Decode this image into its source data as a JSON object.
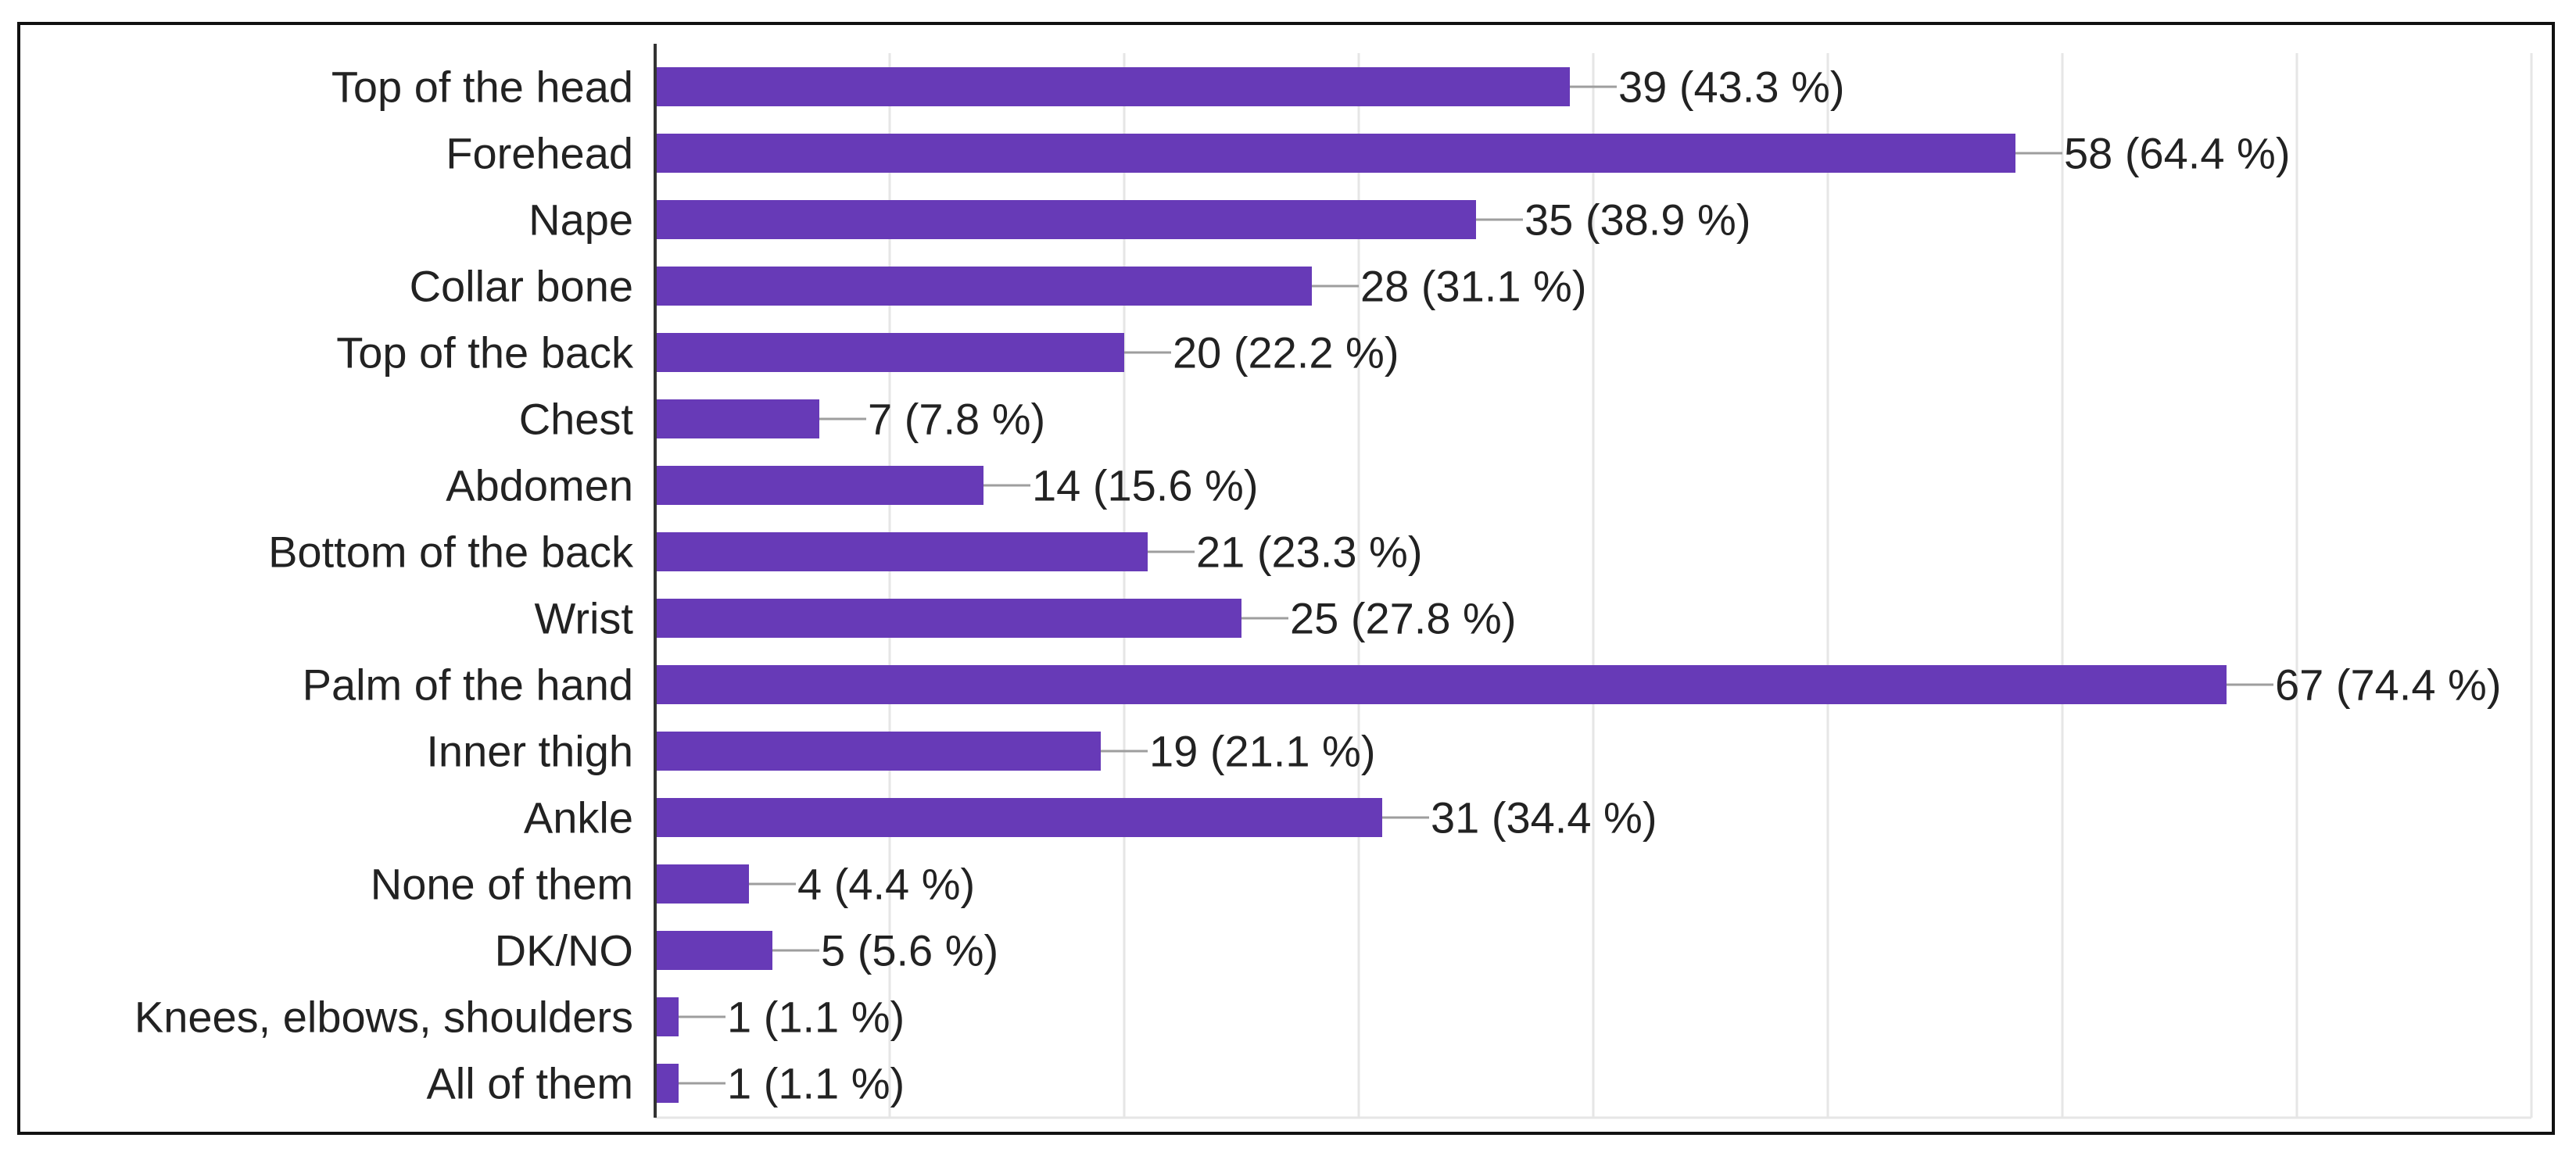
{
  "chart_data": {
    "type": "bar",
    "orientation": "horizontal",
    "title": "",
    "xlabel": "",
    "ylabel": "",
    "xlim": [
      0,
      80
    ],
    "grid": true,
    "bar_color": "#673ab7",
    "categories": [
      "Top of the head",
      "Forehead",
      "Nape",
      "Collar bone",
      "Top of the back",
      "Chest",
      "Abdomen",
      "Bottom of the back",
      "Wrist",
      "Palm of the hand",
      "Inner thigh",
      "Ankle",
      "None of them",
      "DK/NO",
      "Knees, elbows, shoulders",
      "All of them"
    ],
    "values": [
      39,
      58,
      35,
      28,
      20,
      7,
      14,
      21,
      25,
      67,
      19,
      31,
      4,
      5,
      1,
      1
    ],
    "labels": [
      "39 (43.3 %)",
      "58 (64.4 %)",
      "35 (38.9 %)",
      "28 (31.1 %)",
      "20 (22.2 %)",
      "7 (7.8 %)",
      "14 (15.6 %)",
      "21 (23.3 %)",
      "25 (27.8 %)",
      "67 (74.4 %)",
      "19 (21.1 %)",
      "31 (34.4 %)",
      "4 (4.4 %)",
      "5 (5.6 %)",
      "1 (1.1 %)",
      "1 (1.1 %)"
    ]
  }
}
